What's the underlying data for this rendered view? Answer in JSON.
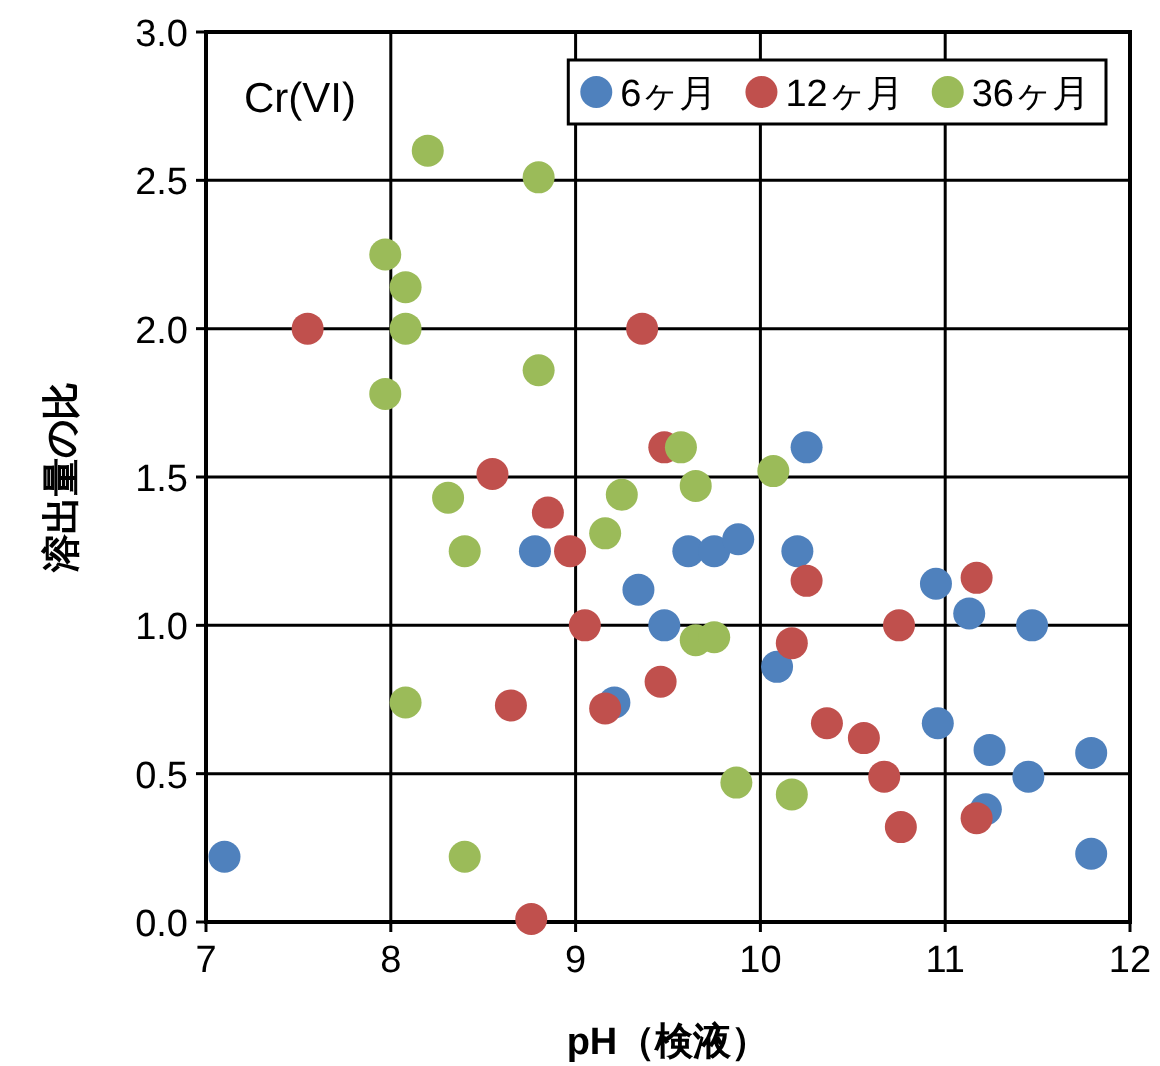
{
  "chart_data": {
    "type": "scatter",
    "xlabel": "pH（検液）",
    "ylabel": "溶出量の比",
    "annotations": [
      "Cr(VI)"
    ],
    "xlim": [
      7,
      12
    ],
    "xticks": [
      7,
      8,
      9,
      10,
      11,
      12
    ],
    "ylim": [
      0,
      3
    ],
    "yticks": [
      {
        "value": 0,
        "label": "0.0"
      },
      {
        "value": 0.5,
        "label": "0.5"
      },
      {
        "value": 1,
        "label": "1.0"
      },
      {
        "value": 1.5,
        "label": "1.5"
      },
      {
        "value": 2,
        "label": "2.0"
      },
      {
        "value": 2.5,
        "label": "2.5"
      },
      {
        "value": 3,
        "label": "3.0"
      }
    ],
    "grid": true,
    "legend": "top right",
    "marker": "circle",
    "series": [
      {
        "name": "6ヶ月",
        "color": "#4f81bd",
        "x": [
          7.1,
          8.78,
          9.21,
          9.34,
          9.48,
          9.61,
          9.75,
          9.88,
          10.09,
          10.2,
          10.25,
          10.95,
          10.96,
          11.13,
          11.22,
          11.24,
          11.45,
          11.47,
          11.79,
          11.79
        ],
        "values": [
          0.22,
          1.25,
          0.74,
          1.12,
          1.0,
          1.25,
          1.25,
          1.29,
          0.86,
          1.25,
          1.6,
          1.14,
          0.67,
          1.04,
          0.38,
          0.58,
          0.49,
          1.0,
          0.57,
          0.23
        ]
      },
      {
        "name": "12ヶ月",
        "color": "#c0504d",
        "x": [
          7.55,
          8.55,
          8.85,
          8.97,
          9.05,
          9.16,
          8.65,
          8.76,
          9.36,
          9.46,
          9.48,
          10.25,
          10.17,
          10.36,
          10.56,
          10.67,
          10.75,
          10.76,
          11.17,
          11.17
        ],
        "values": [
          2.0,
          1.51,
          1.38,
          1.25,
          1.0,
          0.72,
          0.73,
          0.01,
          2.0,
          0.81,
          1.6,
          1.15,
          0.94,
          0.67,
          0.62,
          0.49,
          1.0,
          0.32,
          1.16,
          0.35
        ]
      },
      {
        "name": "36ヶ月",
        "color": "#9bbb59",
        "x": [
          8.2,
          8.8,
          7.97,
          8.08,
          8.08,
          7.97,
          8.8,
          8.31,
          8.4,
          9.25,
          9.16,
          9.57,
          9.65,
          9.65,
          9.75,
          10.07,
          8.08,
          8.4,
          9.87,
          10.17
        ],
        "values": [
          2.6,
          2.51,
          2.25,
          2.14,
          2.0,
          1.78,
          1.86,
          1.43,
          1.25,
          1.44,
          1.31,
          1.6,
          1.47,
          0.95,
          0.96,
          1.52,
          0.74,
          0.22,
          0.47,
          0.43
        ]
      }
    ]
  }
}
